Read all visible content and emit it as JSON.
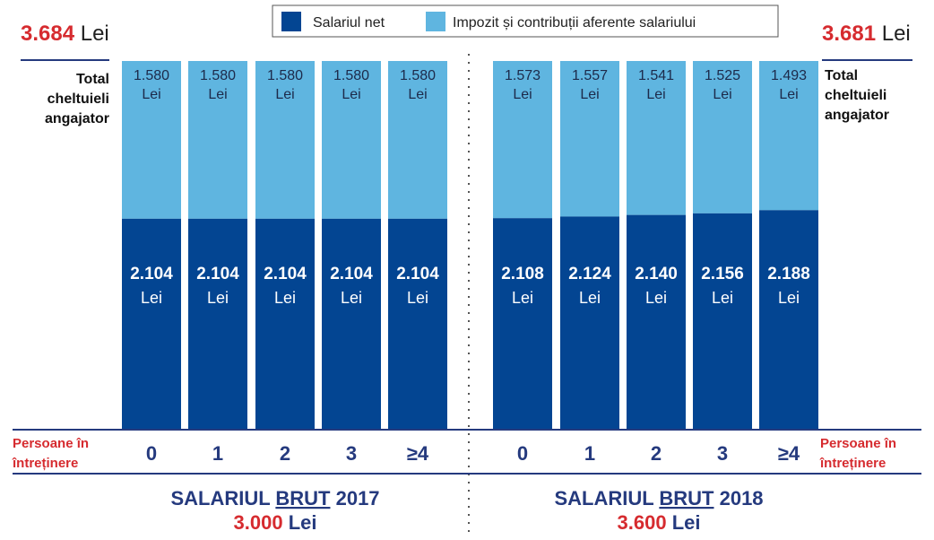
{
  "colors": {
    "net": "#034592",
    "tax": "#5fb5e0",
    "red": "#d62b2f",
    "navy": "#253a7e"
  },
  "legend": [
    {
      "label": "Salariul net",
      "color": "#034592"
    },
    {
      "label": "Impozit și contribuții aferente salariului",
      "color": "#5fb5e0"
    }
  ],
  "unit": "Lei",
  "total_label": [
    "Total",
    "cheltuieli",
    "angajator"
  ],
  "persons_label": [
    "Persoane în",
    "întreținere"
  ],
  "chart_data": {
    "type": "bar",
    "stacked": true,
    "groups": [
      {
        "total": "3.684",
        "total_value": 3684,
        "title_pre": "SALARIUL ",
        "title_u": "BRUT",
        "title_post": " 2017",
        "gross": "3.000",
        "categories": [
          "0",
          "1",
          "2",
          "3",
          "≥4"
        ],
        "series": [
          {
            "name": "Salariul net",
            "values": [
              2104,
              2104,
              2104,
              2104,
              2104
            ],
            "labels": [
              "2.104",
              "2.104",
              "2.104",
              "2.104",
              "2.104"
            ]
          },
          {
            "name": "Impozit și contribuții aferente salariului",
            "values": [
              1580,
              1580,
              1580,
              1580,
              1580
            ],
            "labels": [
              "1.580",
              "1.580",
              "1.580",
              "1.580",
              "1.580"
            ]
          }
        ]
      },
      {
        "total": "3.681",
        "total_value": 3681,
        "title_pre": "SALARIUL ",
        "title_u": "BRUT",
        "title_post": " 2018",
        "gross": "3.600",
        "categories": [
          "0",
          "1",
          "2",
          "3",
          "≥4"
        ],
        "series": [
          {
            "name": "Salariul net",
            "values": [
              2108,
              2124,
              2140,
              2156,
              2188
            ],
            "labels": [
              "2.108",
              "2.124",
              "2.140",
              "2.156",
              "2.188"
            ]
          },
          {
            "name": "Impozit și contribuții aferente salariului",
            "values": [
              1573,
              1557,
              1541,
              1525,
              1493
            ],
            "labels": [
              "1.573",
              "1.557",
              "1.541",
              "1.525",
              "1.493"
            ]
          }
        ]
      }
    ]
  }
}
